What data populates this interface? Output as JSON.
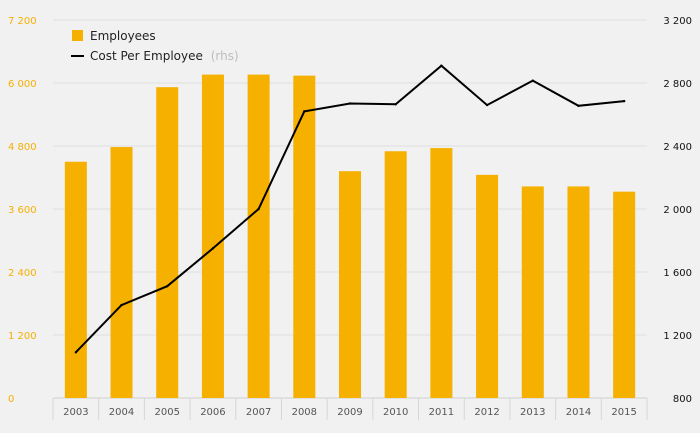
{
  "chart_data": {
    "type": "bar",
    "categories": [
      "2003",
      "2004",
      "2005",
      "2006",
      "2007",
      "2008",
      "2009",
      "2010",
      "2011",
      "2012",
      "2013",
      "2014",
      "2015"
    ],
    "series": [
      {
        "name": "Employees",
        "type": "bar",
        "axis": "left",
        "color": "#f5b000",
        "values": [
          4500,
          4780,
          5920,
          6160,
          6160,
          6140,
          4320,
          4700,
          4760,
          4250,
          4030,
          4030,
          3930
        ]
      },
      {
        "name": "Cost Per Employee",
        "type": "line",
        "axis": "right",
        "color": "#000000",
        "values": [
          1090,
          1390,
          1510,
          1750,
          2000,
          2620,
          2670,
          2665,
          2910,
          2660,
          2815,
          2655,
          2685
        ]
      }
    ],
    "legend": [
      {
        "label": "Employees",
        "suffix": ""
      },
      {
        "label": "Cost Per Employee",
        "suffix": "(rhs)"
      }
    ],
    "y_left": {
      "ticks": [
        "0",
        "1 200",
        "2 400",
        "3 600",
        "4 800",
        "6 000",
        "7 200"
      ],
      "min": 0,
      "max": 7200,
      "color": "#f5b000"
    },
    "y_right": {
      "ticks": [
        "800",
        "1 200",
        "1 600",
        "2 000",
        "2 400",
        "2 800",
        "3 200"
      ],
      "min": 800,
      "max": 3200,
      "color": "#111111"
    },
    "grid": true,
    "legend_position": "top-left"
  }
}
